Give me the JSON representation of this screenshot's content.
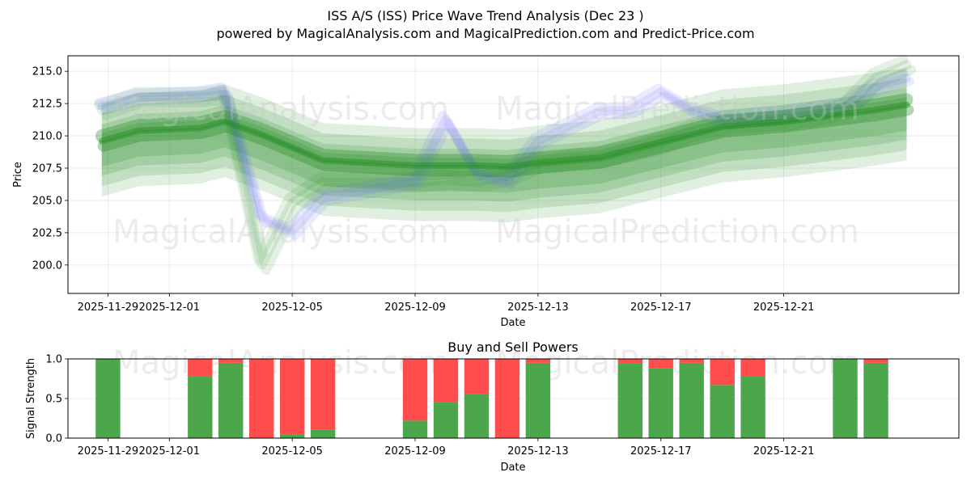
{
  "title_line1": "ISS A/S (ISS) Price Wave Trend Analysis (Dec 23 )",
  "title_line2": "powered by MagicalAnalysis.com and MagicalPrediction.com and Predict-Price.com",
  "watermarks": [
    "MagicalAnalysis.com",
    "MagicalPrediction.com"
  ],
  "colors": {
    "green": "#228b22",
    "blue": "#6666ff",
    "buy": "#4ca64c",
    "sell": "#ff4c4c"
  },
  "chart_data": [
    {
      "type": "area",
      "title": "ISS A/S (ISS) Price Wave Trend Analysis (Dec 23 )",
      "xlabel": "Date",
      "ylabel": "Price",
      "ylim": [
        197.8,
        216.2
      ],
      "yticks": [
        200.0,
        202.5,
        205.0,
        207.5,
        210.0,
        212.5,
        215.0
      ],
      "ytick_labels": [
        "200.0",
        "202.5",
        "205.0",
        "207.5",
        "210.0",
        "212.5",
        "215.0"
      ],
      "xticks": [
        "2025-11-29",
        "2025-12-01",
        "2025-12-05",
        "2025-12-09",
        "2025-12-13",
        "2025-12-17",
        "2025-12-21"
      ],
      "x_day_range": [
        -3.3,
        25.7
      ],
      "x_tick_days": [
        -2,
        0,
        4,
        8,
        12,
        16,
        20
      ],
      "grid": true,
      "x_days": [
        -2.2,
        -1,
        1,
        1.8,
        3,
        4,
        5,
        8,
        9,
        10,
        11,
        12,
        14,
        15,
        16,
        17,
        18,
        20,
        21,
        22,
        23,
        24
      ],
      "series": [
        {
          "name": "blue wave",
          "color": "blue",
          "values": [
            212.3,
            213.0,
            213.2,
            213.5,
            203.6,
            202.6,
            205.2,
            206.5,
            211.3,
            207.1,
            206.5,
            209.6,
            211.9,
            212.0,
            213.4,
            212.0,
            211.3,
            211.7,
            212.0,
            212.3,
            213.8,
            214.5
          ]
        },
        {
          "name": "green wave",
          "color": "green",
          "values": [
            212.0,
            213.0,
            213.0,
            213.2,
            200.0,
            204.8,
            206.4,
            206.4,
            206.6,
            206.4,
            206.9,
            207.9,
            208.3,
            208.8,
            209.4,
            210.4,
            210.9,
            211.2,
            211.5,
            212.1,
            214.5,
            215.5
          ]
        },
        {
          "name": "green trend",
          "color": "green",
          "values": [
            209.5,
            210.3,
            210.5,
            211.0,
            210.0,
            209.0,
            208.0,
            207.6,
            207.6,
            207.6,
            207.5,
            207.8,
            208.2,
            208.8,
            209.4,
            210.0,
            210.6,
            211.0,
            211.3,
            211.6,
            211.9,
            212.3
          ]
        }
      ]
    },
    {
      "type": "bar",
      "title": "Buy and Sell Powers",
      "xlabel": "Date",
      "ylabel": "Signal Strength",
      "ylim": [
        0,
        1
      ],
      "yticks": [
        0.0,
        0.5,
        1.0
      ],
      "ytick_labels": [
        "0.0",
        "0.5",
        "1.0"
      ],
      "xticks": [
        "2025-11-29",
        "2025-12-01",
        "2025-12-05",
        "2025-12-09",
        "2025-12-13",
        "2025-12-17",
        "2025-12-21"
      ],
      "x_day_range": [
        -3.3,
        25.7
      ],
      "x_tick_days": [
        -2,
        0,
        4,
        8,
        12,
        16,
        20
      ],
      "bar_days": [
        -2,
        1,
        2,
        3,
        4,
        5,
        8,
        9,
        10,
        11,
        12,
        15,
        16,
        17,
        18,
        19,
        22,
        23
      ],
      "series": [
        {
          "name": "Buy",
          "color": "buy",
          "values": [
            1.0,
            0.78,
            0.95,
            0.0,
            0.05,
            0.11,
            0.22,
            0.45,
            0.56,
            0.0,
            0.95,
            0.94,
            0.88,
            0.95,
            0.67,
            0.78,
            1.0,
            0.95
          ]
        },
        {
          "name": "Sell",
          "color": "sell",
          "values": [
            0.0,
            0.22,
            0.05,
            1.0,
            0.95,
            0.89,
            0.78,
            0.55,
            0.44,
            1.0,
            0.05,
            0.06,
            0.12,
            0.05,
            0.33,
            0.22,
            0.0,
            0.05
          ]
        }
      ]
    }
  ]
}
